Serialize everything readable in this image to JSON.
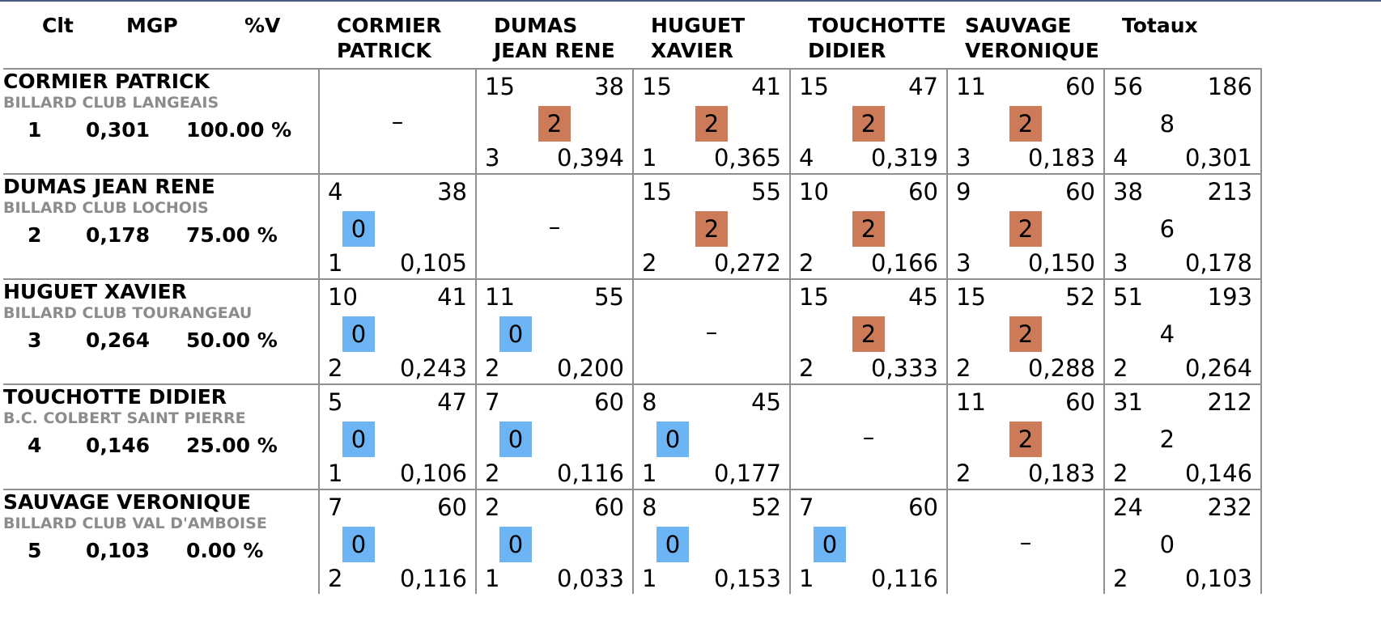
{
  "header": {
    "clt": "Clt",
    "mgp": "MGP",
    "pctv": "%V",
    "columns": [
      [
        "CORMIER",
        "PATRICK"
      ],
      [
        "DUMAS",
        "JEAN RENE"
      ],
      [
        "HUGUET",
        "XAVIER"
      ],
      [
        "TOUCHOTTE",
        "DIDIER"
      ],
      [
        "SAUVAGE",
        "VERONIQUE"
      ]
    ],
    "totals": "Totaux"
  },
  "colors": {
    "win": "#cd7a58",
    "loss": "#6cb4f4",
    "border": "#8f8f8f",
    "club": "#8c8c8c"
  },
  "empty_cell": "–",
  "players": [
    {
      "name": "CORMIER PATRICK",
      "club": "BILLARD CLUB LANGEAIS",
      "rank": "1",
      "mgp": "0,301",
      "pct": "100.00 %",
      "matches": [
        null,
        {
          "pts": "15",
          "rep": "38",
          "score": "2",
          "serie": "3",
          "avg": "0,394",
          "result": "win"
        },
        {
          "pts": "15",
          "rep": "41",
          "score": "2",
          "serie": "1",
          "avg": "0,365",
          "result": "win"
        },
        {
          "pts": "15",
          "rep": "47",
          "score": "2",
          "serie": "4",
          "avg": "0,319",
          "result": "win"
        },
        {
          "pts": "11",
          "rep": "60",
          "score": "2",
          "serie": "3",
          "avg": "0,183",
          "result": "win"
        }
      ],
      "total": {
        "pts": "56",
        "rep": "186",
        "score": "8",
        "serie": "4",
        "avg": "0,301"
      }
    },
    {
      "name": "DUMAS JEAN RENE",
      "club": "BILLARD CLUB LOCHOIS",
      "rank": "2",
      "mgp": "0,178",
      "pct": "75.00 %",
      "matches": [
        {
          "pts": "4",
          "rep": "38",
          "score": "0",
          "serie": "1",
          "avg": "0,105",
          "result": "loss"
        },
        null,
        {
          "pts": "15",
          "rep": "55",
          "score": "2",
          "serie": "2",
          "avg": "0,272",
          "result": "win"
        },
        {
          "pts": "10",
          "rep": "60",
          "score": "2",
          "serie": "2",
          "avg": "0,166",
          "result": "win"
        },
        {
          "pts": "9",
          "rep": "60",
          "score": "2",
          "serie": "3",
          "avg": "0,150",
          "result": "win"
        }
      ],
      "total": {
        "pts": "38",
        "rep": "213",
        "score": "6",
        "serie": "3",
        "avg": "0,178"
      }
    },
    {
      "name": "HUGUET XAVIER",
      "club": "BILLARD CLUB TOURANGEAU",
      "rank": "3",
      "mgp": "0,264",
      "pct": "50.00 %",
      "matches": [
        {
          "pts": "10",
          "rep": "41",
          "score": "0",
          "serie": "2",
          "avg": "0,243",
          "result": "loss"
        },
        {
          "pts": "11",
          "rep": "55",
          "score": "0",
          "serie": "2",
          "avg": "0,200",
          "result": "loss"
        },
        null,
        {
          "pts": "15",
          "rep": "45",
          "score": "2",
          "serie": "2",
          "avg": "0,333",
          "result": "win"
        },
        {
          "pts": "15",
          "rep": "52",
          "score": "2",
          "serie": "2",
          "avg": "0,288",
          "result": "win"
        }
      ],
      "total": {
        "pts": "51",
        "rep": "193",
        "score": "4",
        "serie": "2",
        "avg": "0,264"
      }
    },
    {
      "name": "TOUCHOTTE DIDIER",
      "club": "B.C. COLBERT SAINT PIERRE",
      "rank": "4",
      "mgp": "0,146",
      "pct": "25.00 %",
      "matches": [
        {
          "pts": "5",
          "rep": "47",
          "score": "0",
          "serie": "1",
          "avg": "0,106",
          "result": "loss"
        },
        {
          "pts": "7",
          "rep": "60",
          "score": "0",
          "serie": "2",
          "avg": "0,116",
          "result": "loss"
        },
        {
          "pts": "8",
          "rep": "45",
          "score": "0",
          "serie": "1",
          "avg": "0,177",
          "result": "loss"
        },
        null,
        {
          "pts": "11",
          "rep": "60",
          "score": "2",
          "serie": "2",
          "avg": "0,183",
          "result": "win"
        }
      ],
      "total": {
        "pts": "31",
        "rep": "212",
        "score": "2",
        "serie": "2",
        "avg": "0,146"
      }
    },
    {
      "name": "SAUVAGE VERONIQUE",
      "club": "BILLARD CLUB VAL D'AMBOISE",
      "rank": "5",
      "mgp": "0,103",
      "pct": "0.00 %",
      "matches": [
        {
          "pts": "7",
          "rep": "60",
          "score": "0",
          "serie": "2",
          "avg": "0,116",
          "result": "loss"
        },
        {
          "pts": "2",
          "rep": "60",
          "score": "0",
          "serie": "1",
          "avg": "0,033",
          "result": "loss"
        },
        {
          "pts": "8",
          "rep": "52",
          "score": "0",
          "serie": "1",
          "avg": "0,153",
          "result": "loss"
        },
        {
          "pts": "7",
          "rep": "60",
          "score": "0",
          "serie": "1",
          "avg": "0,116",
          "result": "loss"
        },
        null
      ],
      "total": {
        "pts": "24",
        "rep": "232",
        "score": "0",
        "serie": "2",
        "avg": "0,103"
      }
    }
  ]
}
